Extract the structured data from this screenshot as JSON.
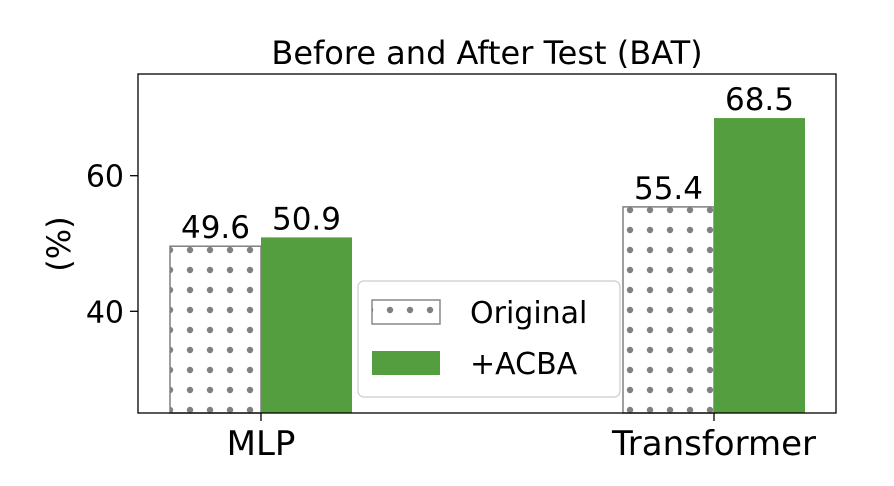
{
  "chart_data": {
    "type": "bar",
    "title": "Before and After Test (BAT)",
    "xlabel": "",
    "ylabel": "(%)",
    "categories": [
      "MLP",
      "Transformer"
    ],
    "series": [
      {
        "name": "Original",
        "values": [
          49.6,
          55.4
        ],
        "color": "#808080",
        "pattern": "dots"
      },
      {
        "name": "+ACBA",
        "values": [
          50.9,
          68.5
        ],
        "color": "#559e3f"
      }
    ],
    "data_labels": [
      [
        "49.6",
        "55.4"
      ],
      [
        "50.9",
        "68.5"
      ]
    ],
    "ylim": [
      25,
      75
    ],
    "yticks": [
      40,
      60
    ],
    "grid": false,
    "legend_position": "lower-center"
  }
}
